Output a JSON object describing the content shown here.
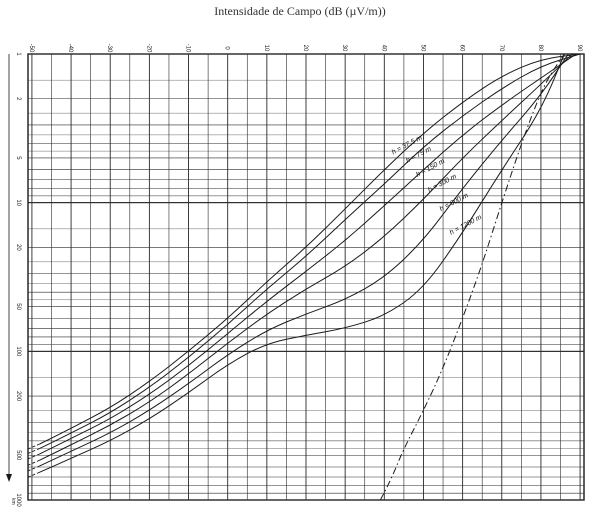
{
  "chart_data": {
    "type": "line",
    "title": "Intensidade de Campo (dB (µV/m))",
    "x_axis": {
      "position": "top",
      "ticks": [
        -50,
        -40,
        -30,
        -20,
        -10,
        0,
        10,
        20,
        30,
        40,
        50,
        60,
        70,
        80,
        90
      ],
      "tick_labels": [
        "-50",
        "-40",
        "-30",
        "-20",
        "-10",
        "0",
        "10",
        "20",
        "30",
        "40",
        "50",
        "60",
        "70",
        "80",
        "90"
      ],
      "range": [
        -51,
        91
      ]
    },
    "y_axis": {
      "position": "left",
      "ticks": [
        1,
        2,
        5,
        10,
        20,
        50,
        100,
        200,
        500,
        1000
      ],
      "tick_labels": [
        "1",
        "2",
        "5",
        "10",
        "20",
        "50",
        "100",
        "200",
        "500",
        "1000"
      ],
      "scale": "log",
      "range": [
        1,
        1000
      ],
      "inverted": true,
      "bottom_note": "km"
    },
    "grid": true,
    "series": [
      {
        "name": "h = 37,5 m",
        "style": "solid",
        "x": [
          -48,
          -40,
          -30,
          -20,
          -10,
          0,
          10,
          20,
          30,
          40,
          50,
          60,
          70,
          80,
          90
        ],
        "y": [
          420,
          330,
          240,
          160,
          100,
          60,
          34,
          20,
          11,
          6,
          3.4,
          2.1,
          1.4,
          1.08,
          1
        ]
      },
      {
        "name": "h = 75 m",
        "style": "solid",
        "x": [
          -48,
          -40,
          -30,
          -20,
          -10,
          0,
          10,
          20,
          30,
          40,
          50,
          60,
          70,
          80,
          90
        ],
        "y": [
          450,
          355,
          260,
          175,
          110,
          66,
          38,
          23,
          13,
          7.5,
          4.2,
          2.6,
          1.7,
          1.2,
          1
        ]
      },
      {
        "name": "h = 150 m",
        "style": "solid",
        "x": [
          -48,
          -40,
          -30,
          -20,
          -10,
          0,
          10,
          20,
          30,
          40,
          50,
          60,
          70,
          80,
          89
        ],
        "y": [
          490,
          385,
          285,
          195,
          125,
          76,
          46,
          29,
          18,
          10.5,
          6,
          3.5,
          2.2,
          1.45,
          1
        ]
      },
      {
        "name": "h = 300 m",
        "style": "solid",
        "x": [
          -48,
          -40,
          -30,
          -20,
          -10,
          0,
          10,
          20,
          30,
          40,
          50,
          60,
          70,
          80,
          88
        ],
        "y": [
          540,
          425,
          315,
          220,
          142,
          88,
          56,
          38,
          27,
          17,
          9.5,
          5,
          2.8,
          1.6,
          1
        ]
      },
      {
        "name": "h = 600 m",
        "style": "solid",
        "x": [
          -48,
          -40,
          -30,
          -20,
          -10,
          0,
          10,
          20,
          30,
          40,
          50,
          60,
          70,
          80,
          87
        ],
        "y": [
          590,
          470,
          355,
          250,
          165,
          105,
          72,
          56,
          45,
          32,
          18,
          8,
          3.8,
          1.9,
          1
        ]
      },
      {
        "name": "h = 1200 m",
        "style": "solid",
        "x": [
          -48,
          -40,
          -30,
          -20,
          -10,
          0,
          10,
          20,
          30,
          40,
          50,
          60,
          70,
          80,
          86
        ],
        "y": [
          650,
          525,
          400,
          285,
          190,
          122,
          88,
          78,
          70,
          58,
          38,
          16,
          6,
          2.4,
          1
        ]
      },
      {
        "name": "",
        "style": "dash-dot",
        "x": [
          39,
          42,
          45,
          50,
          55,
          60,
          65,
          70,
          75,
          80,
          83,
          86
        ],
        "y": [
          1000,
          700,
          450,
          250,
          130,
          60,
          26,
          10,
          4,
          1.8,
          1.3,
          1
        ]
      }
    ],
    "curve_labels": [
      "h = 37,5 m",
      "h = 75 m",
      "h = 150 m",
      "h = 300 m",
      "h = 600 m",
      "h = 1200 m"
    ],
    "colors": {
      "ink": "#1a1a1a",
      "grid": "#2a2a2a",
      "paper": "#ffffff"
    }
  }
}
